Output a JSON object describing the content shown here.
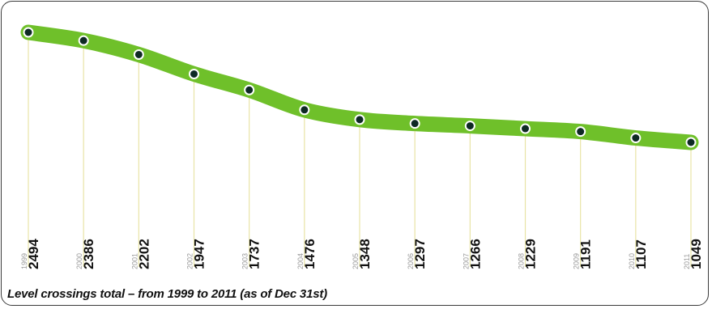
{
  "caption": "Level crossings total – from 1999 to 2011 (as of Dec 31st)",
  "colors": {
    "band": "#6fc02a",
    "marker_fill": "#0e2a24",
    "marker_ring": "#ffffff",
    "guide_line": "#e8e4a6",
    "year_text": "#9a9a9a",
    "value_text": "#111111"
  },
  "chart_data": {
    "type": "line",
    "title": "",
    "xlabel": "",
    "ylabel": "",
    "x": [
      "1999",
      "2000",
      "2001",
      "2002",
      "2003",
      "2004",
      "2005",
      "2006",
      "2007",
      "2008",
      "2009",
      "2010",
      "2011"
    ],
    "values": [
      2494,
      2386,
      2202,
      1947,
      1737,
      1476,
      1348,
      1297,
      1266,
      1229,
      1191,
      1107,
      1049
    ],
    "data_labels": [
      "2494",
      "2386",
      "2202",
      "1947",
      "1737",
      "1476",
      "1348",
      "1297",
      "1266",
      "1229",
      "1191",
      "1107",
      "1049"
    ],
    "grid": false,
    "legend": "none"
  }
}
